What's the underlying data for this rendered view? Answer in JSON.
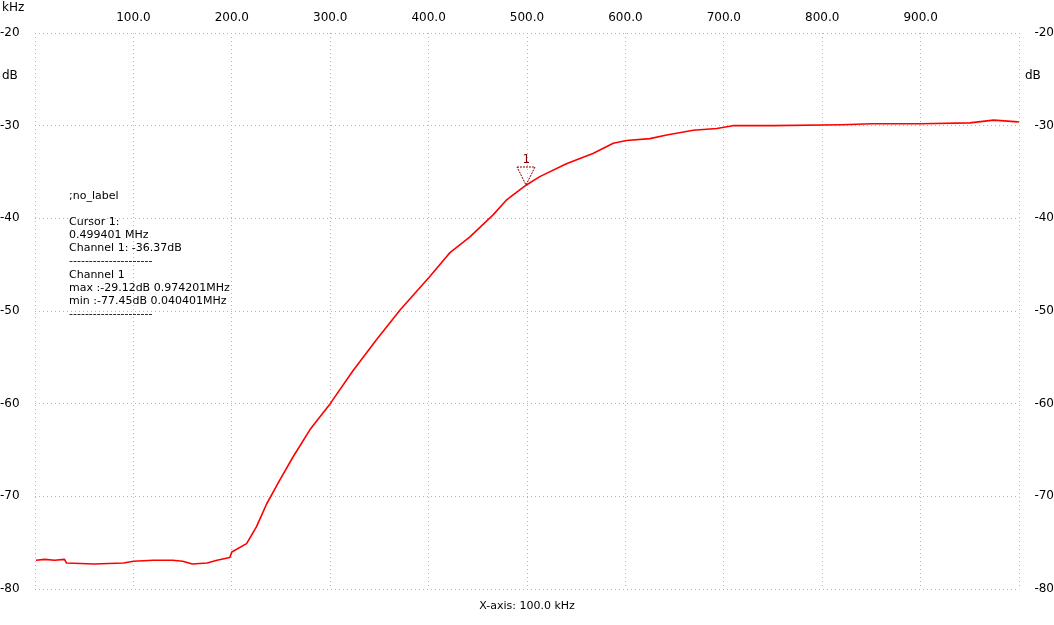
{
  "chart_data": {
    "type": "line",
    "xlabel": "kHz",
    "ylabel": "dB",
    "y2label": "dB",
    "annotations": [
      ";no_label",
      "Cursor 1:",
      "0.499401 MHz",
      "Channel 1: -36.37dB",
      "---------------------",
      "Channel 1",
      "max :-29.12dB 0.974201MHz",
      "min :-77.45dB 0.040401MHz",
      "---------------------",
      "X-axis: 100.0 kHz",
      {
        "text": "1",
        "x": 499.4,
        "y": -36.37
      }
    ],
    "x": [
      1,
      10,
      20,
      30,
      32,
      60,
      90,
      100,
      120,
      140,
      150,
      160,
      175,
      185,
      198,
      200,
      215,
      225,
      235.5,
      249,
      262.5,
      279.5,
      300,
      323.5,
      347,
      371,
      401,
      421.7,
      442,
      465.8,
      479.4,
      499.4,
      513,
      540,
      567,
      587.7,
      601,
      625,
      642,
      669,
      692.8,
      709,
      750,
      820,
      850,
      900,
      950,
      974.2,
      1000
    ],
    "series": [
      {
        "color": "#ff0000",
        "values": [
          -76.9,
          -76.8,
          -76.9,
          -76.8,
          -77.2,
          -77.3,
          -77.2,
          -77.0,
          -76.9,
          -76.9,
          -77.0,
          -77.3,
          -77.2,
          -76.9,
          -76.6,
          -76.0,
          -75.1,
          -73.3,
          -70.8,
          -68.2,
          -65.7,
          -62.8,
          -60.0,
          -56.4,
          -53.1,
          -49.9,
          -46.3,
          -43.7,
          -42.0,
          -39.6,
          -38.0,
          -36.4,
          -35.5,
          -34.1,
          -33.0,
          -31.9,
          -31.6,
          -31.4,
          -31.0,
          -30.5,
          -30.3,
          -30.0,
          -30.0,
          -29.9,
          -29.8,
          -29.8,
          -29.7,
          -29.4,
          -29.6
        ]
      }
    ],
    "xlim": [
      0,
      1000
    ],
    "xticks": [
      {
        "value": 0,
        "label": null
      },
      {
        "value": 100,
        "label": "100.0"
      },
      {
        "value": 200,
        "label": "200.0"
      },
      {
        "value": 300,
        "label": "300.0"
      },
      {
        "value": 400,
        "label": "400.0"
      },
      {
        "value": 500,
        "label": "500.0"
      },
      {
        "value": 600,
        "label": "600.0"
      },
      {
        "value": 700,
        "label": "700.0"
      },
      {
        "value": 800,
        "label": "800.0"
      },
      {
        "value": 900,
        "label": "900.0"
      },
      {
        "value": 1000,
        "label": null
      }
    ],
    "ylim": [
      -80,
      -20
    ],
    "yticks": [
      -80,
      -70,
      -60,
      -50,
      -40,
      -30,
      -20
    ],
    "y2lim": [
      -80,
      -20
    ],
    "y2ticks": [
      -80,
      -70,
      -60,
      -50,
      -40,
      -30,
      -20
    ],
    "grid": true,
    "legend": false,
    "marker": "none",
    "line_style": "solid"
  }
}
